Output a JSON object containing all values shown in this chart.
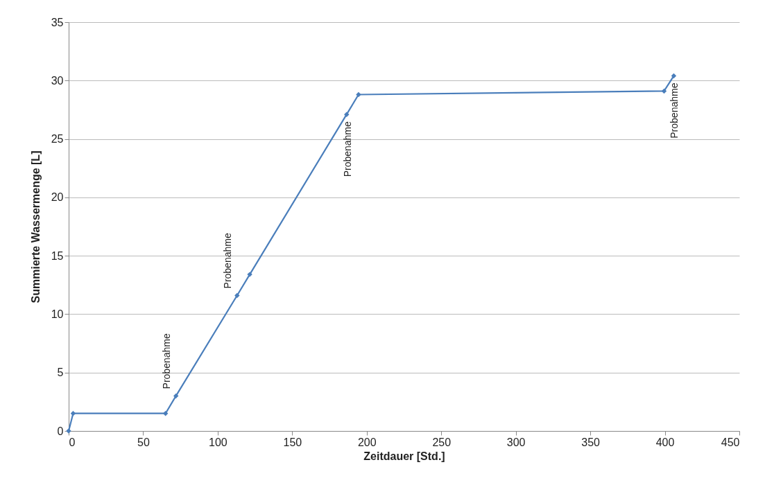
{
  "chart_data": {
    "type": "line",
    "xlabel": "Zeitdauer [Std.]",
    "ylabel": "Summierte Wassermenge [L]",
    "x": [
      0,
      3,
      65,
      72,
      113,
      121.5,
      186.5,
      194.5,
      399.5,
      406
    ],
    "series": [
      {
        "color": "#4a7ebb",
        "values": [
          0,
          1.5,
          1.5,
          3,
          11.6,
          13.4,
          27.1,
          28.8,
          29.1,
          30.4
        ]
      }
    ],
    "xlim": [
      0,
      450
    ],
    "xticks": [
      0,
      50,
      100,
      150,
      200,
      250,
      300,
      350,
      400,
      450
    ],
    "ylim": [
      0,
      35
    ],
    "yticks": [
      0,
      5,
      10,
      15,
      20,
      25,
      30,
      35
    ],
    "grid": "y",
    "marker": "diamond",
    "line_style": "solid",
    "annotations": [
      {
        "text": "Probenahme",
        "x": 72,
        "y": 3
      },
      {
        "text": "Probenahme",
        "x": 113,
        "y": 11.6
      },
      {
        "text": "Probenahme",
        "x": 186.5,
        "y": 27.1
      },
      {
        "text": "Probenahme",
        "x": 406,
        "y": 30.4
      }
    ]
  }
}
